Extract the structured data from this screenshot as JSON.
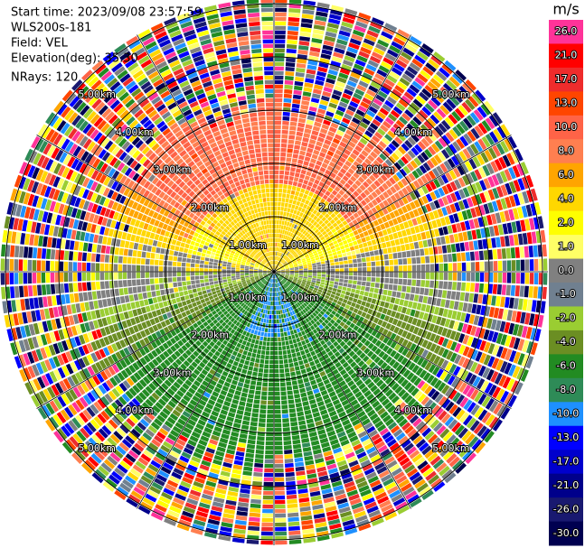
{
  "header": {
    "lines": [
      "Start time: 2023/09/08 23:57:59",
      "WLS200s-181",
      "Field: VEL",
      "Elevation(deg): 35.30",
      "NRays: 120"
    ]
  },
  "range_rings": {
    "labels": [
      "1.00km",
      "2.00km",
      "3.00km",
      "4.00km",
      "5.00km"
    ]
  },
  "colorbar": {
    "unit": "m/s",
    "ticks": [
      {
        "value": 26,
        "label": "26.0"
      },
      {
        "value": 21,
        "label": "21.0"
      },
      {
        "value": 17,
        "label": "17.0"
      },
      {
        "value": 13,
        "label": "13.0"
      },
      {
        "value": 10,
        "label": "10.0"
      },
      {
        "value": 8,
        "label": "8.0"
      },
      {
        "value": 6,
        "label": "6.0"
      },
      {
        "value": 4,
        "label": "4.0"
      },
      {
        "value": 2,
        "label": "2.0"
      },
      {
        "value": 1,
        "label": "1.0"
      },
      {
        "value": 0,
        "label": "0.0"
      },
      {
        "value": -1,
        "label": "-1.0"
      },
      {
        "value": -2,
        "label": "-2.0"
      },
      {
        "value": -4,
        "label": "-4.0"
      },
      {
        "value": -6,
        "label": "-6.0"
      },
      {
        "value": -8,
        "label": "-8.0"
      },
      {
        "value": -10,
        "label": "-10.0"
      },
      {
        "value": -13,
        "label": "-13.0"
      },
      {
        "value": -17,
        "label": "-17.0"
      },
      {
        "value": -21,
        "label": "-21.0"
      },
      {
        "value": -26,
        "label": "-26.0"
      },
      {
        "value": -30,
        "label": "-30.0"
      }
    ],
    "colors": [
      "#ff3399",
      "#ff0000",
      "#ee2c2c",
      "#ff4500",
      "#ff6347",
      "#ff7f50",
      "#ffa500",
      "#ffd700",
      "#ffff00",
      "#ffff66",
      "#808080",
      "#708090",
      "#9acd32",
      "#6b8e23",
      "#228b22",
      "#2e8b57",
      "#1e90ff",
      "#0000ff",
      "#0000cd",
      "#00008b",
      "#191970",
      "#000050"
    ]
  }
}
